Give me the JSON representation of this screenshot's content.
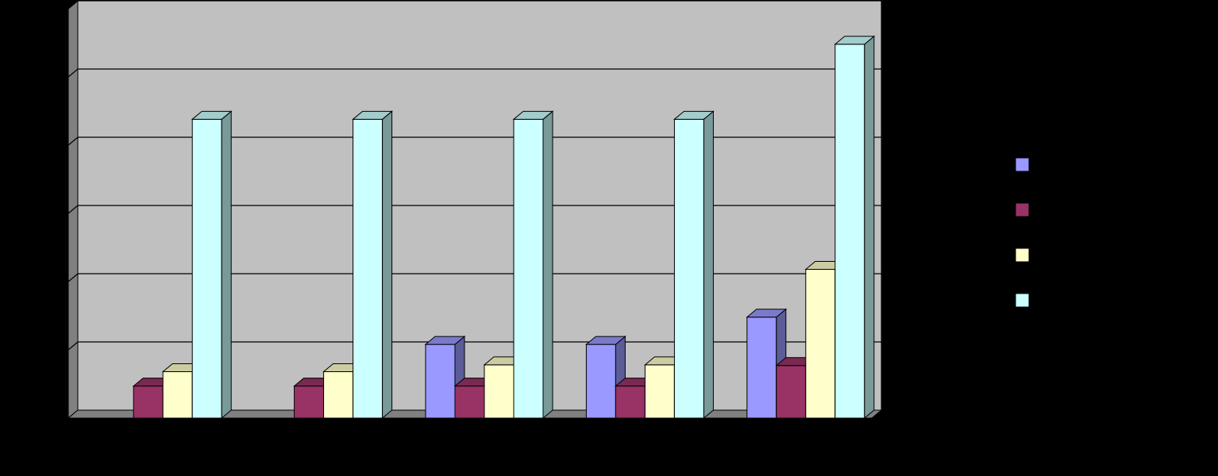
{
  "chart_data": {
    "type": "bar",
    "title": "",
    "xlabel": "",
    "ylabel": "",
    "ylim": [
      0,
      6
    ],
    "yticks": [
      0,
      1,
      2,
      3,
      4,
      5,
      6
    ],
    "grid": true,
    "three_d": true,
    "legend_placement": "right",
    "plot_background": "#c0c0c0",
    "page_background": "#000000",
    "categories": [
      "",
      "",
      "",
      "",
      ""
    ],
    "series": [
      {
        "color": "#9999ff",
        "values": [
          0,
          0,
          1.08,
          1.08,
          1.48
        ]
      },
      {
        "color": "#993366",
        "values": [
          0.47,
          0.47,
          0.47,
          0.47,
          0.77
        ]
      },
      {
        "color": "#ffffcc",
        "values": [
          0.68,
          0.68,
          0.78,
          0.78,
          2.18
        ]
      },
      {
        "color": "#ccffff",
        "values": [
          4.38,
          4.38,
          4.38,
          4.38,
          5.48
        ]
      }
    ]
  }
}
